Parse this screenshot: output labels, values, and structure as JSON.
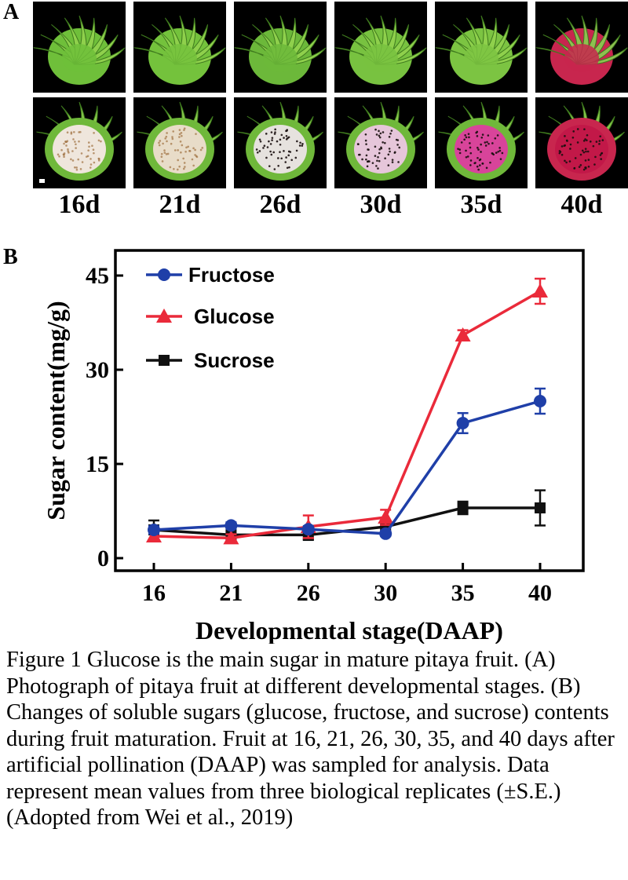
{
  "figure": {
    "panel_a_letter": "A",
    "panel_b_letter": "B",
    "caption": "Figure 1 Glucose is the main sugar in mature pitaya fruit. (A) Photograph of pitaya fruit at different developmental stages. (B) Changes of soluble sugars (glucose, fructose, and sucrose) contents during fruit maturation. Fruit at 16, 21, 26, 30, 35, and 40 days after artificial pollination (DAAP) was sampled for analysis. Data represent mean values from three biological replicates (±S.E.) (Adopted from Wei et al., 2019)"
  },
  "photos": {
    "stages": [
      "16d",
      "21d",
      "26d",
      "30d",
      "35d",
      "40d"
    ],
    "peel_colors": [
      "#6fbf3a",
      "#74c23c",
      "#6cb83a",
      "#78c240",
      "#7cc442",
      "#c8264e"
    ],
    "flesh_colors": [
      "#efe6dc",
      "#e8dcc8",
      "#e6e2de",
      "#e6c6da",
      "#d8449a",
      "#c21848"
    ]
  },
  "chart_data": {
    "type": "line",
    "x": [
      16,
      21,
      26,
      30,
      35,
      40
    ],
    "xticks": [
      "16",
      "21",
      "26",
      "30",
      "35",
      "40"
    ],
    "yticks": [
      0,
      15,
      30,
      45
    ],
    "ylim": [
      -2,
      49
    ],
    "xlabel": "Developmental stage(DAAP)",
    "ylabel": "Sugar content(mg/g)",
    "legend_position": "top-left",
    "series": [
      {
        "name": "Fructose",
        "color": "#1f3fa8",
        "marker": "circle",
        "values": [
          4.5,
          5.2,
          4.6,
          3.9,
          21.5,
          25.0
        ],
        "errors": [
          0.6,
          0.5,
          0.5,
          0.4,
          1.6,
          2.0
        ]
      },
      {
        "name": "Glucose",
        "color": "#ea2a3a",
        "marker": "triangle",
        "values": [
          3.5,
          3.2,
          5.0,
          6.5,
          35.5,
          42.5
        ],
        "errors": [
          0.8,
          0.6,
          1.8,
          1.2,
          0.8,
          2.0
        ]
      },
      {
        "name": "Sucrose",
        "color": "#111111",
        "marker": "square",
        "values": [
          4.5,
          3.7,
          3.7,
          5.0,
          8.0,
          8.0
        ],
        "errors": [
          1.5,
          1.2,
          0.8,
          0.8,
          1.0,
          2.8
        ]
      }
    ]
  }
}
